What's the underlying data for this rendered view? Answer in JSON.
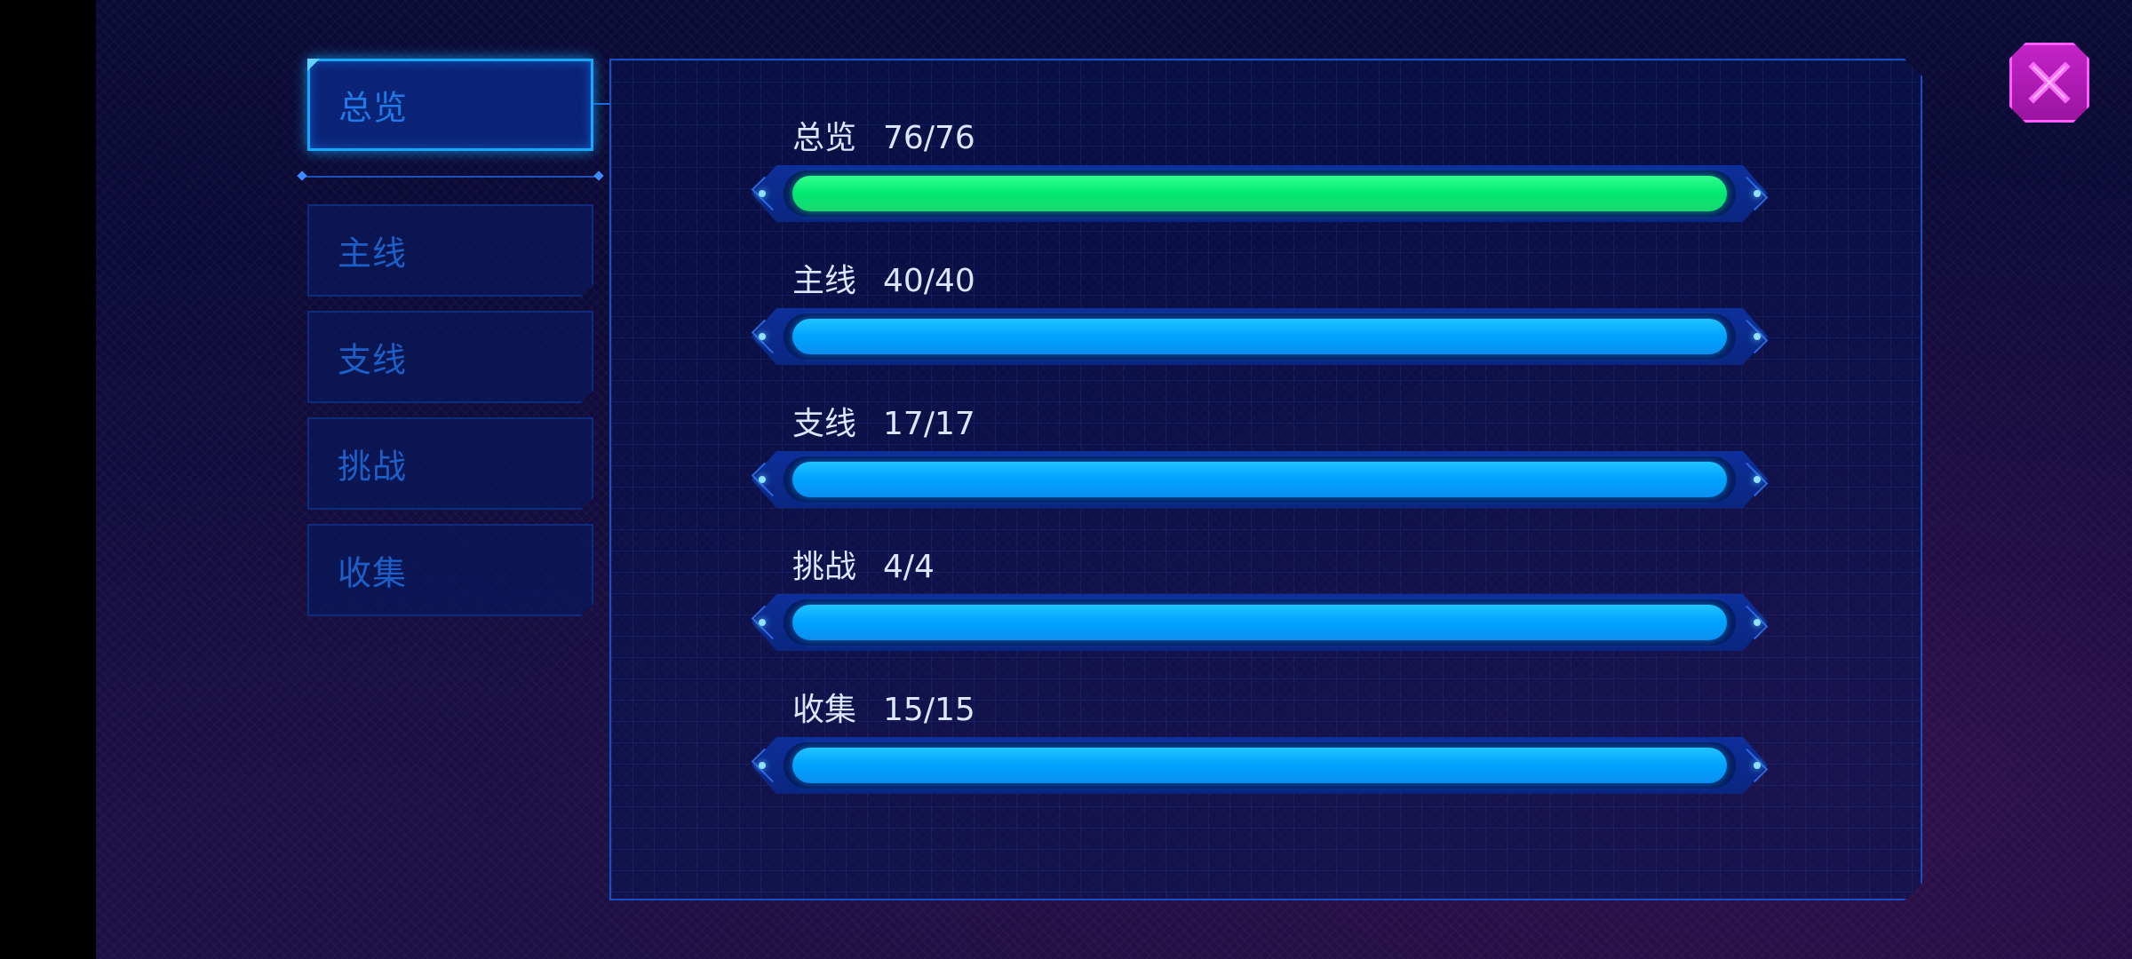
{
  "colors": {
    "accent_blue": "#14a8ff",
    "bar_green": "#00e873",
    "bar_blue": "#00a2ff",
    "close_magenta": "#c323c8"
  },
  "sidebar": {
    "tabs": [
      {
        "label": "总览",
        "active": true
      },
      {
        "label": "主线",
        "active": false
      },
      {
        "label": "支线",
        "active": false
      },
      {
        "label": "挑战",
        "active": false
      },
      {
        "label": "收集",
        "active": false
      }
    ]
  },
  "progress": [
    {
      "category": "总览",
      "completed": 76,
      "total": 76,
      "count_text": "76/76",
      "color": "green",
      "fraction": 1.0
    },
    {
      "category": "主线",
      "completed": 40,
      "total": 40,
      "count_text": "40/40",
      "color": "blue",
      "fraction": 1.0
    },
    {
      "category": "支线",
      "completed": 17,
      "total": 17,
      "count_text": "17/17",
      "color": "blue",
      "fraction": 1.0
    },
    {
      "category": "挑战",
      "completed": 4,
      "total": 4,
      "count_text": "4/4",
      "color": "blue",
      "fraction": 1.0
    },
    {
      "category": "收集",
      "completed": 15,
      "total": 15,
      "count_text": "15/15",
      "color": "blue",
      "fraction": 1.0
    }
  ],
  "close_button": {
    "icon": "close-icon"
  }
}
